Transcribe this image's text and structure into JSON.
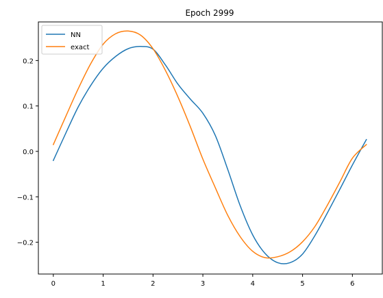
{
  "chart_data": {
    "type": "line",
    "title": "Epoch 2999",
    "xlabel": "",
    "ylabel": "",
    "xlim": [
      -0.3,
      6.6
    ],
    "ylim": [
      -0.27,
      0.285
    ],
    "xticks": [
      0,
      1,
      2,
      3,
      4,
      5,
      6
    ],
    "xtick_labels": [
      "0",
      "1",
      "2",
      "3",
      "4",
      "5",
      "6"
    ],
    "yticks": [
      -0.2,
      -0.1,
      0.0,
      0.1,
      0.2
    ],
    "ytick_labels": [
      "−0.2",
      "−0.1",
      "0.0",
      "0.1",
      "0.2"
    ],
    "grid": false,
    "legend_position": "top-left",
    "series": [
      {
        "name": "NN",
        "color": "#1f77b4",
        "x": [
          0,
          0.25,
          0.5,
          0.75,
          1.0,
          1.25,
          1.5,
          1.75,
          2.0,
          2.25,
          2.5,
          2.75,
          3.0,
          3.25,
          3.5,
          3.75,
          4.0,
          4.25,
          4.5,
          4.75,
          5.0,
          5.25,
          5.5,
          5.75,
          6.0,
          6.28
        ],
        "y": [
          -0.02,
          0.04,
          0.098,
          0.145,
          0.183,
          0.209,
          0.226,
          0.231,
          0.225,
          0.19,
          0.148,
          0.115,
          0.084,
          0.035,
          -0.04,
          -0.12,
          -0.184,
          -0.225,
          -0.245,
          -0.245,
          -0.226,
          -0.185,
          -0.135,
          -0.083,
          -0.03,
          0.026
        ]
      },
      {
        "name": "exact",
        "color": "#ff7f0e",
        "x": [
          0,
          0.25,
          0.5,
          0.75,
          1.0,
          1.25,
          1.5,
          1.75,
          2.0,
          2.25,
          2.5,
          2.75,
          3.0,
          3.25,
          3.5,
          3.75,
          4.0,
          4.25,
          4.5,
          4.75,
          5.0,
          5.25,
          5.5,
          5.75,
          6.0,
          6.28
        ],
        "y": [
          0.015,
          0.077,
          0.138,
          0.193,
          0.236,
          0.259,
          0.265,
          0.256,
          0.226,
          0.178,
          0.12,
          0.054,
          -0.017,
          -0.08,
          -0.141,
          -0.188,
          -0.22,
          -0.234,
          -0.232,
          -0.221,
          -0.199,
          -0.165,
          -0.118,
          -0.067,
          -0.015,
          0.015
        ]
      }
    ]
  }
}
